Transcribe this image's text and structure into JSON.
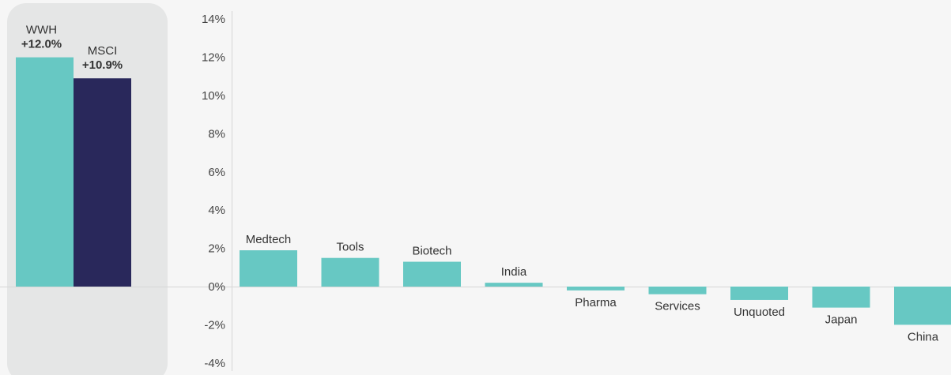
{
  "chart_data": {
    "type": "bar",
    "yaxis": {
      "min": -4,
      "max": 14,
      "step": 2,
      "unit": "%",
      "tick_labels": [
        "14%",
        "12%",
        "10%",
        "8%",
        "6%",
        "4%",
        "2%",
        "0%",
        "-2%",
        "-4%"
      ]
    },
    "summary": {
      "highlighted_panel": true,
      "bars": [
        {
          "name": "WWH",
          "value": 12.0,
          "value_label": "+12.0%",
          "color": "#67c8c3"
        },
        {
          "name": "MSCI",
          "value": 10.9,
          "value_label": "+10.9%",
          "color": "#29285b"
        }
      ]
    },
    "contributions": {
      "color": "#67c8c3",
      "categories": [
        "Medtech",
        "Tools",
        "Biotech",
        "India",
        "Pharma",
        "Services",
        "Unquoted",
        "Japan",
        "China"
      ],
      "values": [
        1.9,
        1.5,
        1.3,
        0.2,
        -0.2,
        -0.4,
        -0.7,
        -1.1,
        -2.0
      ]
    },
    "colors": {
      "background": "#f6f6f6",
      "panel": "#e5e6e6",
      "axis": "#d6d6d6",
      "text": "#333333"
    }
  }
}
